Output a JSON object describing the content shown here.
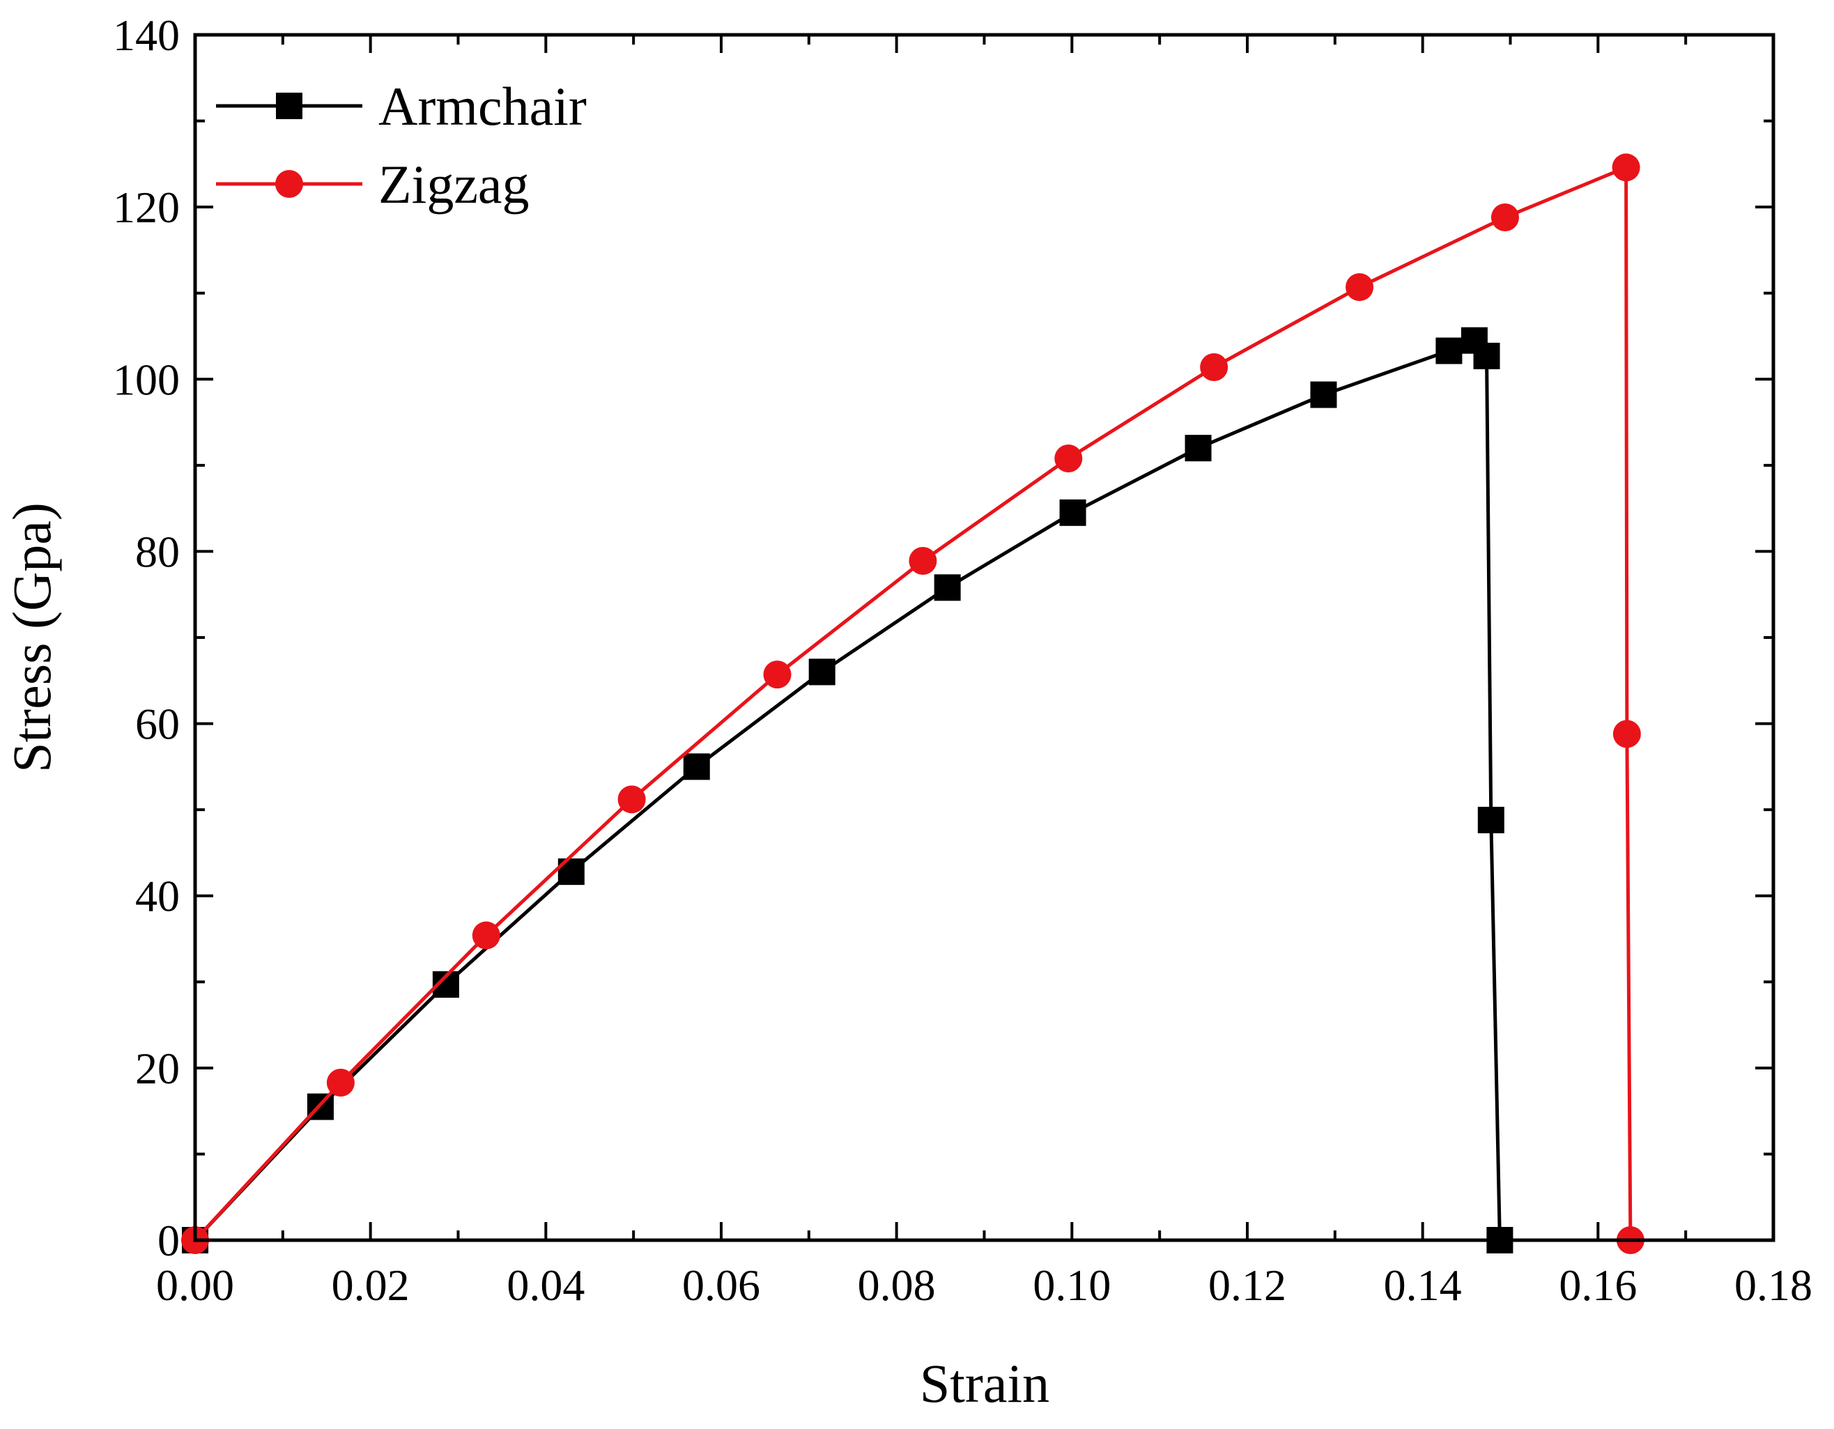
{
  "chart_data": {
    "type": "line",
    "title": "",
    "xlabel": "Strain",
    "ylabel": "Stress (Gpa)",
    "xlim": [
      0,
      0.18
    ],
    "ylim": [
      0,
      140
    ],
    "x_ticks": [
      "0.00",
      "0.02",
      "0.04",
      "0.06",
      "0.08",
      "0.10",
      "0.12",
      "0.14",
      "0.16",
      "0.18"
    ],
    "x_tick_values": [
      0,
      0.02,
      0.04,
      0.06,
      0.08,
      0.1,
      0.12,
      0.14,
      0.16,
      0.18
    ],
    "y_ticks": [
      "0",
      "20",
      "40",
      "60",
      "80",
      "100",
      "120",
      "140"
    ],
    "y_tick_values": [
      0,
      20,
      40,
      60,
      80,
      100,
      120,
      140
    ],
    "grid": false,
    "legend_position": "top-left",
    "series": [
      {
        "name": "Armchair",
        "color": "#000000",
        "marker": "square",
        "x": [
          0.0,
          0.0143,
          0.0286,
          0.0429,
          0.0572,
          0.0715,
          0.0858,
          0.1001,
          0.1144,
          0.1287,
          0.143,
          0.1459,
          0.1473,
          0.1478,
          0.1488
        ],
        "y": [
          0.0,
          15.5,
          29.7,
          42.8,
          55.0,
          66.0,
          75.8,
          84.5,
          92.0,
          98.2,
          103.3,
          104.5,
          102.7,
          48.8,
          0.0
        ]
      },
      {
        "name": "Zigzag",
        "color": "#e8141a",
        "marker": "circle",
        "x": [
          0.0,
          0.0166,
          0.0332,
          0.0498,
          0.0664,
          0.083,
          0.0996,
          0.1162,
          0.1328,
          0.1494,
          0.1632,
          0.1633,
          0.1637
        ],
        "y": [
          0.0,
          18.3,
          35.4,
          51.2,
          65.7,
          78.9,
          90.8,
          101.4,
          110.7,
          118.8,
          124.6,
          58.8,
          0.0
        ]
      }
    ]
  }
}
